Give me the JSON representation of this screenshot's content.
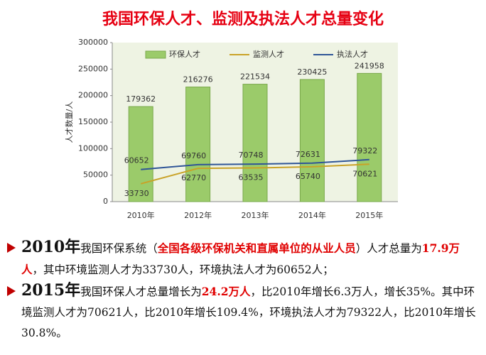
{
  "chart_data": {
    "type": "bar",
    "title": "我国环保人才、监测及执法人才总量变化",
    "y_label": "人才数量/人",
    "categories": [
      "2010年",
      "2012年",
      "2013年",
      "2014年",
      "2015年"
    ],
    "series": [
      {
        "name": "环保人才",
        "type": "bar",
        "color": "#9bcb6a",
        "values": [
          179362,
          216276,
          221534,
          230425,
          241958
        ]
      },
      {
        "name": "监测人才",
        "type": "line",
        "color": "#c9a227",
        "values": [
          33730,
          62770,
          63535,
          65740,
          70621
        ]
      },
      {
        "name": "执法人才",
        "type": "line",
        "color": "#2f5597",
        "values": [
          60652,
          69760,
          70748,
          72631,
          79322
        ]
      }
    ],
    "ylim": [
      0,
      300000
    ],
    "yticks": [
      0,
      50000,
      100000,
      150000,
      200000,
      250000,
      300000
    ],
    "grid": false
  },
  "bullets": [
    {
      "year": "2010年",
      "segments": [
        {
          "text": "我国环保系统（"
        },
        {
          "text": "全国各级环保机关和直属单位的从业人员",
          "color": "#e00000"
        },
        {
          "text": "）人才总量为"
        },
        {
          "text": "17.9万人",
          "color": "#e00000"
        },
        {
          "text": "，其中环境监测人才为33730人，环境执法人才为60652人；"
        }
      ]
    },
    {
      "year": "2015年",
      "segments": [
        {
          "text": "我国环保人才总量增长为"
        },
        {
          "text": "24.2万人",
          "color": "#e00000"
        },
        {
          "text": "，比2010年增长6.3万人，增长35%。其中环境监测人才为70621人，比2010年增长109.4%，环境执法人才为79322人，比2010年增长30.8%。"
        }
      ]
    }
  ]
}
